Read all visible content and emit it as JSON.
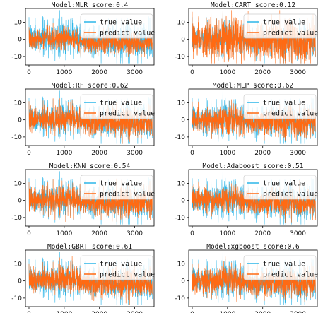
{
  "chart_data": {
    "type": "line",
    "colors": {
      "true": "#2cb5e8",
      "predict": "#ff6a13"
    },
    "x_ticks": [
      0,
      1000,
      2000,
      3000
    ],
    "y_ticks": [
      -10,
      0,
      10
    ],
    "xlim": [
      -100,
      3550
    ],
    "ylim": [
      -15,
      18
    ],
    "series_names": [
      "true value",
      "predict value"
    ],
    "panels": [
      {
        "title": "Model:MLR  score:0.4",
        "score": 0.4,
        "predict_scale": 0.35
      },
      {
        "title": "Model:CART  score:0.12",
        "score": 0.12,
        "predict_scale": 1.0
      },
      {
        "title": "Model:RF  score:0.62",
        "score": 0.62,
        "predict_scale": 0.7
      },
      {
        "title": "Model:MLP  score:0.62",
        "score": 0.62,
        "predict_scale": 0.7
      },
      {
        "title": "Model:KNN  score:0.54",
        "score": 0.54,
        "predict_scale": 0.7
      },
      {
        "title": "Model:Adaboost  score:0.51",
        "score": 0.51,
        "predict_scale": 0.55
      },
      {
        "title": "Model:GBRT  score:0.61",
        "score": 0.61,
        "predict_scale": 0.7
      },
      {
        "title": "Model:xgboost  score:0.6",
        "score": 0.6,
        "predict_scale": 0.7
      }
    ]
  }
}
